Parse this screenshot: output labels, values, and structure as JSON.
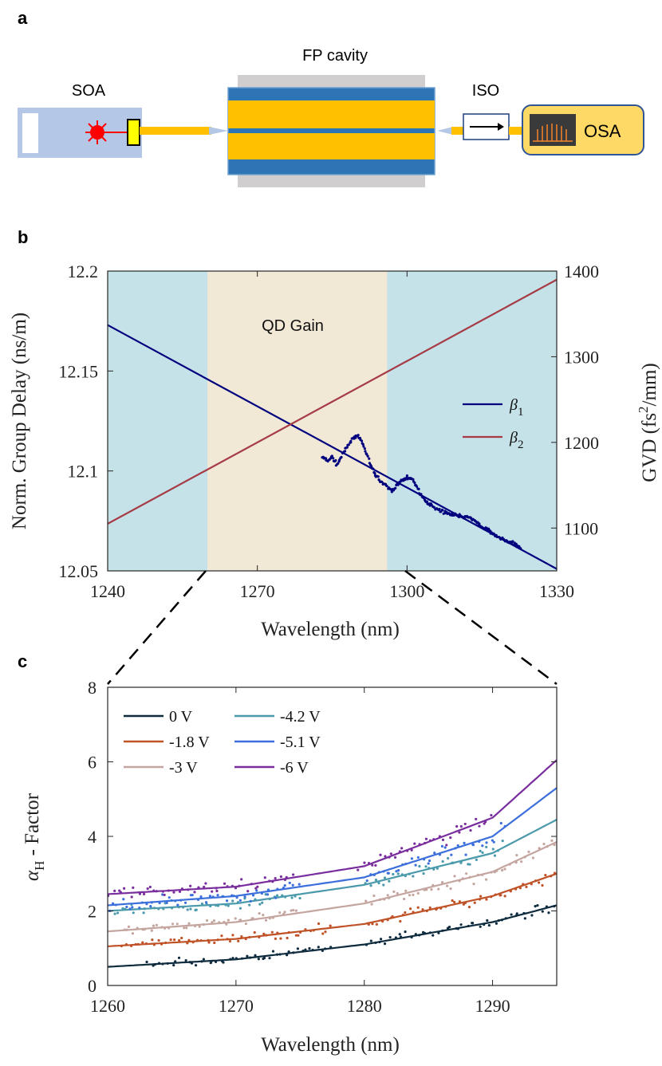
{
  "panel_a": {
    "letter": "a",
    "soa_label": "SOA",
    "cavity_label": "FP cavity",
    "iso_label": "ISO",
    "osa_label": "OSA",
    "colors": {
      "soa_body": "#b4c7e7",
      "gold": "#ffc000",
      "blue_band": "#2e75b6",
      "grey": "#d0cece",
      "laser": "#ff0000",
      "osa_box": "#ffd966",
      "osa_border": "#2f5597"
    }
  },
  "panel_b": {
    "letter": "b",
    "region_label": "QD Gain",
    "colors": {
      "beta1": "#00007f",
      "beta2": "#a63a45",
      "outer_bg": "#c5e2e8",
      "gain_bg": "#f1e8d6",
      "points": "#00007f"
    }
  },
  "panel_c": {
    "letter": "c",
    "colors": [
      "#0f2c3f",
      "#c05228",
      "#c4a59f",
      "#4a9aac",
      "#3c6fdb",
      "#7a2e9e"
    ]
  },
  "chart_data": [
    {
      "type": "line",
      "title": "",
      "xlabel": "Wavelength (nm)",
      "ylabel": "Norm. Group Delay (ns/m)",
      "y2label": "GVD (fs",
      "y2label_sup": "2",
      "y2label_end": "/mm)",
      "xlim": [
        1240,
        1330
      ],
      "ylim": [
        12.05,
        12.2
      ],
      "y2lim": [
        1050,
        1400
      ],
      "xticks": [
        1240,
        1270,
        1300,
        1330
      ],
      "yticks": [
        "12.05",
        "12.1",
        "12.15",
        "12.2"
      ],
      "y2ticks": [
        1100,
        1200,
        1300,
        1400
      ],
      "shaded_region": {
        "label": "QD Gain",
        "x": [
          1260,
          1296
        ]
      },
      "legend": [
        {
          "sym": "β",
          "sub": "1"
        },
        {
          "sym": "β",
          "sub": "2"
        }
      ],
      "series": [
        {
          "name": "β1",
          "axis": "left",
          "x": [
            1240,
            1330
          ],
          "y": [
            12.173,
            12.051
          ]
        },
        {
          "name": "β2",
          "axis": "right",
          "x": [
            1240,
            1330
          ],
          "y": [
            1105,
            1390
          ]
        }
      ],
      "scatter": {
        "name": "measured group delay",
        "x": [
          1283,
          1284,
          1285,
          1286,
          1287,
          1288,
          1289,
          1290,
          1291,
          1292,
          1293,
          1294,
          1295,
          1296,
          1297,
          1298,
          1299,
          1300,
          1301,
          1302,
          1303,
          1304,
          1305,
          1306,
          1307,
          1308,
          1309,
          1310,
          1311,
          1312,
          1313,
          1314,
          1315,
          1316,
          1317,
          1318,
          1319,
          1320,
          1321,
          1322,
          1323
        ],
        "y": [
          12.107,
          12.105,
          12.107,
          12.103,
          12.108,
          12.112,
          12.116,
          12.118,
          12.114,
          12.108,
          12.101,
          12.097,
          12.094,
          12.092,
          12.09,
          12.093,
          12.095,
          12.097,
          12.096,
          12.092,
          12.087,
          12.084,
          12.083,
          12.081,
          12.08,
          12.079,
          12.078,
          12.078,
          12.077,
          12.077,
          12.076,
          12.074,
          12.072,
          12.071,
          12.069,
          12.067,
          12.066,
          12.065,
          12.064,
          12.063,
          12.061
        ]
      }
    },
    {
      "type": "scatter",
      "title": "",
      "xlabel": "Wavelength (nm)",
      "ylabel": "α",
      "ylabel_sub": "H",
      "ylabel_end": " - Factor",
      "xlim": [
        1260,
        1295
      ],
      "ylim": [
        0,
        8
      ],
      "xticks": [
        1260,
        1270,
        1280,
        1290
      ],
      "yticks": [
        0,
        2,
        4,
        6,
        8
      ],
      "series": [
        {
          "name": "0 V",
          "fit_x": [
            1260,
            1270,
            1280,
            1290,
            1295
          ],
          "fit_y": [
            0.5,
            0.7,
            1.1,
            1.7,
            2.15
          ],
          "points_x_ranges": [
            [
              1263,
              1277.5
            ],
            [
              1280,
              1295
            ]
          ]
        },
        {
          "name": "-1.8 V",
          "fit_x": [
            1260,
            1270,
            1280,
            1290,
            1295
          ],
          "fit_y": [
            1.05,
            1.25,
            1.65,
            2.4,
            3.0
          ],
          "points_x_ranges": [
            [
              1261,
              1277.5
            ],
            [
              1280,
              1295
            ]
          ]
        },
        {
          "name": "-3 V",
          "fit_x": [
            1260,
            1270,
            1280,
            1290,
            1295
          ],
          "fit_y": [
            1.45,
            1.7,
            2.2,
            3.05,
            3.85
          ],
          "points_x_ranges": [
            [
              1261,
              1275
            ],
            [
              1280,
              1295
            ]
          ]
        },
        {
          "name": "-4.2 V",
          "fit_x": [
            1260,
            1270,
            1280,
            1290,
            1295
          ],
          "fit_y": [
            2.0,
            2.2,
            2.7,
            3.55,
            4.45
          ],
          "points_x_ranges": [
            [
              1260,
              1275
            ],
            [
              1280,
              1291
            ]
          ]
        },
        {
          "name": "-5.1 V",
          "fit_x": [
            1260,
            1270,
            1280,
            1290,
            1295
          ],
          "fit_y": [
            2.15,
            2.4,
            2.9,
            4.0,
            5.3
          ],
          "points_x_ranges": [
            [
              1260,
              1275
            ],
            [
              1280,
              1291
            ]
          ]
        },
        {
          "name": "-6 V",
          "fit_x": [
            1260,
            1270,
            1280,
            1290,
            1295
          ],
          "fit_y": [
            2.45,
            2.65,
            3.2,
            4.5,
            6.05
          ],
          "points_x_ranges": [
            [
              1260,
              1274.5
            ],
            [
              1279.5,
              1290
            ]
          ]
        }
      ]
    }
  ]
}
